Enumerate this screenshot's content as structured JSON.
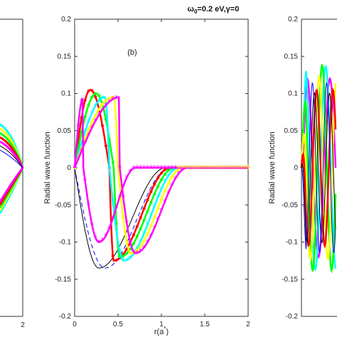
{
  "figure": {
    "title_prefix": "ω",
    "title_subscript": "0",
    "title_rest": "=0.2 eV,γ=0"
  },
  "chart_data": [
    {
      "type": "line",
      "panel": "left (partially visible)",
      "title": "",
      "xlabel": "",
      "ylabel": "",
      "xticks_visible": [
        "2"
      ],
      "ylim": [
        -0.2,
        0.2
      ],
      "series": []
    },
    {
      "type": "line",
      "panel": "(b)",
      "panel_label": "(b)",
      "title": "ω0=0.2 eV,γ=0",
      "xlabel": "r(a*)",
      "xlabel_main": "r(a",
      "xlabel_sup": "*",
      "xlabel_close": ")",
      "ylabel": "Radial wave function",
      "xlim": [
        0,
        2
      ],
      "ylim": [
        -0.2,
        0.2
      ],
      "xticks": [
        0,
        0.5,
        1,
        1.5,
        2
      ],
      "xtick_labels": [
        "0",
        "0.5",
        "1",
        "1.5",
        "2"
      ],
      "yticks": [
        -0.2,
        -0.15,
        -0.1,
        -0.05,
        0,
        0.05,
        0.1,
        0.15,
        0.2
      ],
      "ytick_labels": [
        "-0.2",
        "-0.15",
        "-0.1",
        "-0.05",
        "0",
        "0.05",
        "0.1",
        "0.15",
        "0.2"
      ],
      "grid": false,
      "series": [
        {
          "color": "#000000",
          "style": "solid",
          "marker": "none",
          "zero": 0.25,
          "node": null,
          "min_x": 0.28,
          "min_y": -0.135,
          "max_x": null,
          "max_y": null,
          "decay_end": 1.05
        },
        {
          "color": "#0000ff",
          "style": "dashed",
          "marker": "none",
          "zero": 0.3,
          "node": null,
          "min_x": 0.35,
          "min_y": -0.135,
          "max_x": null,
          "max_y": null,
          "decay_end": 1.1
        },
        {
          "color": "#ff0000",
          "style": "solid",
          "marker": "dot",
          "zero": 0.4,
          "node": null,
          "min_x": 0.45,
          "min_y": -0.125,
          "max_x": 0.18,
          "max_y": 0.105,
          "decay_end": 1.1
        },
        {
          "color": "#00ff00",
          "style": "solid",
          "marker": "dot",
          "zero": 0.45,
          "node": null,
          "min_x": 0.52,
          "min_y": -0.12,
          "max_x": 0.25,
          "max_y": 0.1,
          "decay_end": 1.15
        },
        {
          "color": "#00ffff",
          "style": "solid",
          "marker": "star",
          "zero": 0.4,
          "node": 0.15,
          "min_x": 0.57,
          "min_y": -0.125,
          "max_x": 0.35,
          "max_y": 0.095,
          "decay_end": 1.2
        },
        {
          "color": "#ffff00",
          "style": "solid",
          "marker": "dot",
          "zero": 0.5,
          "node": 0.2,
          "min_x": 0.65,
          "min_y": -0.115,
          "max_x": 0.45,
          "max_y": 0.095,
          "decay_end": 1.25
        },
        {
          "color": "#ff00ff",
          "style": "solid",
          "marker": "star",
          "zero": 0.52,
          "node": 0.28,
          "min_x": 0.7,
          "min_y": -0.115,
          "max_x": 0.52,
          "max_y": 0.095,
          "decay_end": 1.3
        },
        {
          "color": "#ff00ff",
          "style": "solid",
          "marker": "star",
          "zero": 0.1,
          "node": null,
          "min_x": 0.28,
          "min_y": -0.1,
          "max_x": 0.1,
          "max_y": 0.095,
          "decay_end": 0.7
        }
      ]
    },
    {
      "type": "line",
      "panel": "right (partially visible)",
      "title": "",
      "xlabel": "",
      "ylabel": "Radial wave function",
      "xlim": [
        0,
        2
      ],
      "ylim": [
        -0.2,
        0.2
      ],
      "yticks": [
        -0.2,
        -0.15,
        -0.1,
        -0.05,
        0,
        0.05,
        0.1,
        0.15,
        0.2
      ],
      "ytick_labels": [
        "-0.2",
        "-0.15",
        "-0.1",
        "-0.05",
        "0",
        "0.05",
        "0.1",
        "0.15",
        "0.2"
      ],
      "series": []
    }
  ]
}
